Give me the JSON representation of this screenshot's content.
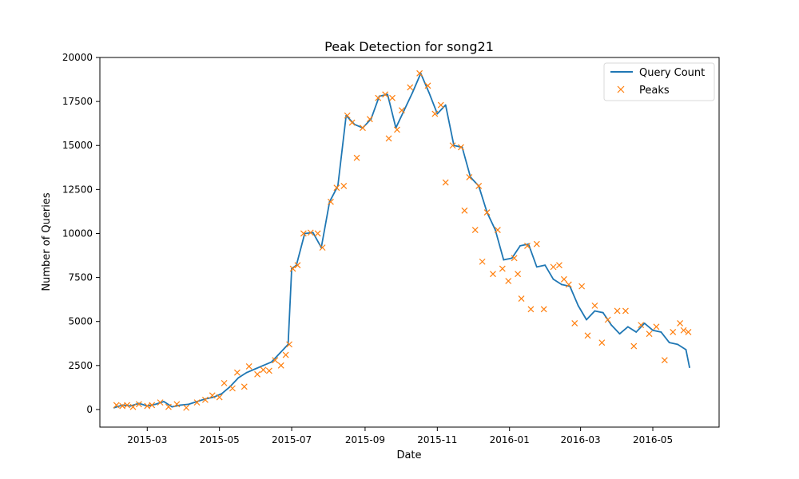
{
  "chart_data": {
    "type": "line",
    "title": "Peak Detection for song21",
    "xlabel": "Date",
    "ylabel": "Number of Queries",
    "x_range": [
      "2015-01-20",
      "2016-06-26"
    ],
    "y_range": [
      -1000,
      20000
    ],
    "x_ticks": [
      "2015-03",
      "2015-05",
      "2015-07",
      "2015-09",
      "2015-11",
      "2016-01",
      "2016-03",
      "2016-05"
    ],
    "y_ticks": [
      0,
      2500,
      5000,
      7500,
      10000,
      12500,
      15000,
      17500,
      20000
    ],
    "grid": false,
    "legend_position": "top-right",
    "series": [
      {
        "name": "Query Count",
        "kind": "line",
        "color": "#1f77b4",
        "x": [
          "2015-02-01",
          "2015-02-08",
          "2015-02-15",
          "2015-02-22",
          "2015-03-01",
          "2015-03-08",
          "2015-03-15",
          "2015-03-22",
          "2015-03-29",
          "2015-04-05",
          "2015-04-12",
          "2015-04-19",
          "2015-04-26",
          "2015-05-03",
          "2015-05-10",
          "2015-05-17",
          "2015-05-24",
          "2015-05-31",
          "2015-06-07",
          "2015-06-14",
          "2015-06-21",
          "2015-06-28",
          "2015-07-01",
          "2015-07-05",
          "2015-07-12",
          "2015-07-19",
          "2015-07-26",
          "2015-08-02",
          "2015-08-09",
          "2015-08-16",
          "2015-08-23",
          "2015-08-30",
          "2015-09-06",
          "2015-09-13",
          "2015-09-20",
          "2015-09-27",
          "2015-10-04",
          "2015-10-11",
          "2015-10-18",
          "2015-10-25",
          "2015-11-01",
          "2015-11-08",
          "2015-11-15",
          "2015-11-22",
          "2015-11-29",
          "2015-12-06",
          "2015-12-13",
          "2015-12-20",
          "2015-12-27",
          "2016-01-03",
          "2016-01-10",
          "2016-01-17",
          "2016-01-24",
          "2016-01-31",
          "2016-02-07",
          "2016-02-14",
          "2016-02-21",
          "2016-02-28",
          "2016-03-06",
          "2016-03-13",
          "2016-03-20",
          "2016-03-27",
          "2016-04-03",
          "2016-04-10",
          "2016-04-17",
          "2016-04-24",
          "2016-05-01",
          "2016-05-08",
          "2016-05-15",
          "2016-05-22",
          "2016-05-29",
          "2016-06-01"
        ],
        "values": [
          100,
          250,
          200,
          350,
          200,
          300,
          450,
          150,
          250,
          300,
          450,
          600,
          700,
          900,
          1300,
          1800,
          2100,
          2300,
          2500,
          2700,
          3200,
          3700,
          8000,
          8200,
          10000,
          10050,
          9200,
          11800,
          12700,
          16700,
          16200,
          16000,
          16500,
          17800,
          17900,
          16000,
          17000,
          18000,
          19100,
          18000,
          16800,
          17300,
          15000,
          14900,
          13200,
          12700,
          11200,
          10200,
          8500,
          8600,
          9300,
          9400,
          8100,
          8200,
          7400,
          7100,
          7000,
          5900,
          5100,
          5600,
          5500,
          4800,
          4300,
          4700,
          4400,
          4900,
          4500,
          4400,
          3800,
          3700,
          3400,
          2400
        ]
      },
      {
        "name": "Peaks",
        "kind": "scatter",
        "marker": "x",
        "color": "#ff7f0e",
        "x": [
          "2015-02-03",
          "2015-02-08",
          "2015-02-12",
          "2015-02-17",
          "2015-02-22",
          "2015-03-01",
          "2015-03-05",
          "2015-03-12",
          "2015-03-19",
          "2015-03-26",
          "2015-04-03",
          "2015-04-12",
          "2015-04-19",
          "2015-04-25",
          "2015-05-01",
          "2015-05-05",
          "2015-05-12",
          "2015-05-16",
          "2015-05-22",
          "2015-05-26",
          "2015-06-02",
          "2015-06-07",
          "2015-06-12",
          "2015-06-17",
          "2015-06-22",
          "2015-06-26",
          "2015-06-29",
          "2015-07-02",
          "2015-07-06",
          "2015-07-11",
          "2015-07-17",
          "2015-07-23",
          "2015-07-27",
          "2015-08-03",
          "2015-08-08",
          "2015-08-14",
          "2015-08-17",
          "2015-08-21",
          "2015-08-25",
          "2015-08-30",
          "2015-09-05",
          "2015-09-12",
          "2015-09-18",
          "2015-09-21",
          "2015-09-24",
          "2015-09-28",
          "2015-10-02",
          "2015-10-09",
          "2015-10-17",
          "2015-10-24",
          "2015-10-30",
          "2015-11-04",
          "2015-11-08",
          "2015-11-14",
          "2015-11-21",
          "2015-11-24",
          "2015-11-28",
          "2015-12-03",
          "2015-12-06",
          "2015-12-09",
          "2015-12-13",
          "2015-12-18",
          "2015-12-22",
          "2015-12-26",
          "2015-12-31",
          "2016-01-05",
          "2016-01-08",
          "2016-01-11",
          "2016-01-16",
          "2016-01-19",
          "2016-01-24",
          "2016-01-30",
          "2016-02-07",
          "2016-02-12",
          "2016-02-16",
          "2016-02-20",
          "2016-02-25",
          "2016-03-02",
          "2016-03-07",
          "2016-03-13",
          "2016-03-19",
          "2016-03-24",
          "2016-04-01",
          "2016-04-08",
          "2016-04-15",
          "2016-04-21",
          "2016-04-28",
          "2016-05-04",
          "2016-05-11",
          "2016-05-18",
          "2016-05-24",
          "2016-05-27",
          "2016-05-31"
        ],
        "values": [
          250,
          200,
          250,
          150,
          300,
          200,
          250,
          400,
          150,
          300,
          100,
          400,
          550,
          800,
          700,
          1500,
          1200,
          2100,
          1300,
          2450,
          2000,
          2250,
          2200,
          2800,
          2500,
          3100,
          3700,
          8000,
          8200,
          10000,
          10050,
          10000,
          9200,
          11800,
          12600,
          12700,
          16700,
          16300,
          14300,
          16000,
          16500,
          17700,
          17900,
          15400,
          17700,
          15900,
          17000,
          18300,
          19100,
          18400,
          16800,
          17300,
          12900,
          15000,
          14900,
          11300,
          13200,
          10200,
          12700,
          8400,
          11200,
          7700,
          10200,
          8000,
          7300,
          8600,
          7700,
          6300,
          9300,
          5700,
          9400,
          5700,
          8100,
          8200,
          7400,
          7100,
          4900,
          7000,
          4200,
          5900,
          3800,
          5100,
          5600,
          5600,
          3600,
          4800,
          4300,
          4700,
          2800,
          4400,
          4900,
          4500,
          4400
        ]
      }
    ]
  }
}
